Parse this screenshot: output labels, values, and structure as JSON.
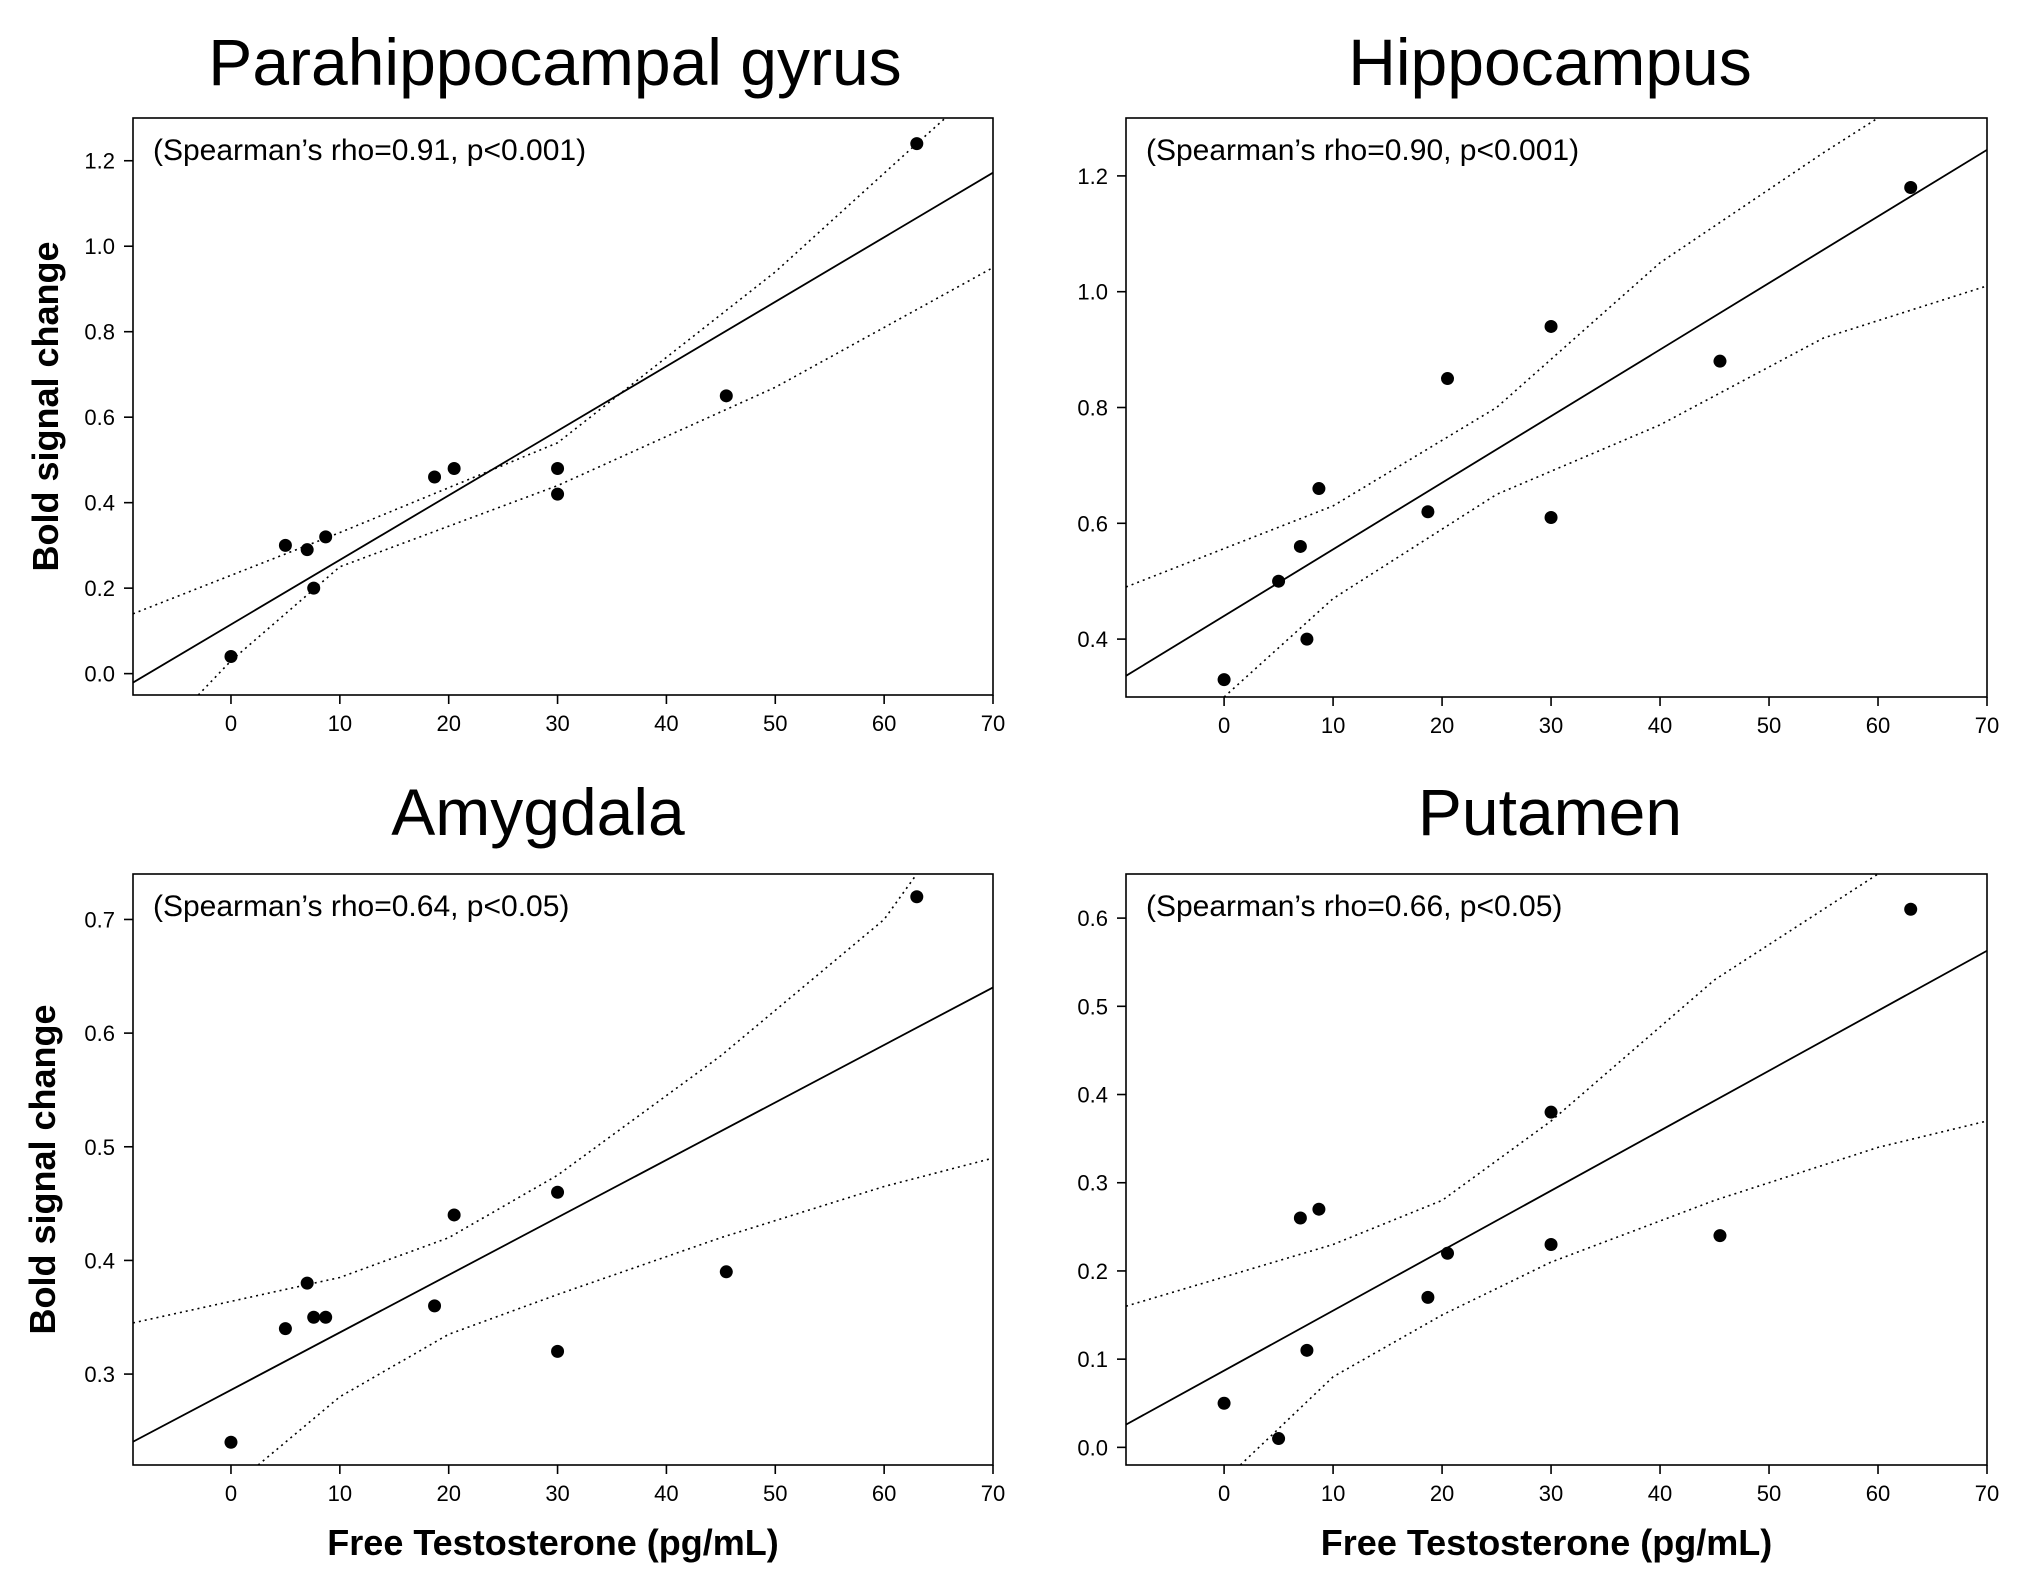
{
  "chart_data": [
    {
      "type": "scatter",
      "title": "Parahippocampal gyrus",
      "annotation": "(Spearman’s rho=0.91, p<0.001)",
      "xlabel": "",
      "ylabel": "Bold signal change",
      "xlim": [
        -9,
        70
      ],
      "ylim": [
        -0.05,
        1.3
      ],
      "xticks": [
        "0",
        "10",
        "20",
        "30",
        "40",
        "50",
        "60",
        "70"
      ],
      "yticks": [
        "0.0",
        "0.2",
        "0.4",
        "0.6",
        "0.8",
        "1.0",
        "1.2"
      ],
      "x": [
        0,
        5,
        7,
        7.6,
        8.7,
        18.7,
        20.5,
        30,
        30,
        45.5,
        63
      ],
      "y": [
        0.04,
        0.3,
        0.29,
        0.2,
        0.32,
        0.46,
        0.48,
        0.48,
        0.42,
        0.65,
        1.24
      ],
      "fit": {
        "intercept": 0.115,
        "slope": 0.0151
      },
      "ci_upper": {
        "x": [
          -9,
          10,
          30,
          50,
          63,
          70
        ],
        "y": [
          0.14,
          0.33,
          0.54,
          0.94,
          1.24,
          1.4
        ]
      },
      "ci_lower": {
        "x": [
          -3,
          0,
          10,
          30,
          50,
          70
        ],
        "y": [
          -0.05,
          0.03,
          0.25,
          0.44,
          0.67,
          0.95
        ]
      }
    },
    {
      "type": "scatter",
      "title": "Hippocampus",
      "annotation": "(Spearman’s rho=0.90, p<0.001)",
      "xlabel": "",
      "ylabel": "",
      "xlim": [
        -9,
        70
      ],
      "ylim": [
        0.3,
        1.3
      ],
      "xticks": [
        "0",
        "10",
        "20",
        "30",
        "40",
        "50",
        "60",
        "70"
      ],
      "yticks": [
        "0.4",
        "0.6",
        "0.8",
        "1.0",
        "1.2"
      ],
      "x": [
        0,
        5,
        7,
        7.6,
        8.7,
        18.7,
        20.5,
        30,
        30,
        45.5,
        63
      ],
      "y": [
        0.33,
        0.5,
        0.56,
        0.4,
        0.66,
        0.62,
        0.85,
        0.94,
        0.61,
        0.88,
        1.18
      ],
      "fit": {
        "intercept": 0.44,
        "slope": 0.0115
      },
      "ci_upper": {
        "x": [
          -9,
          10,
          25,
          40,
          55,
          60
        ],
        "y": [
          0.49,
          0.63,
          0.8,
          1.05,
          1.24,
          1.3
        ]
      },
      "ci_lower": {
        "x": [
          0,
          10,
          25,
          40,
          55,
          70
        ],
        "y": [
          0.3,
          0.47,
          0.65,
          0.77,
          0.92,
          1.01
        ]
      }
    },
    {
      "type": "scatter",
      "title": "Amygdala",
      "annotation": "(Spearman’s rho=0.64, p<0.05)",
      "xlabel": "Free Testosterone (pg/mL)",
      "ylabel": "Bold signal change",
      "xlim": [
        -9,
        70
      ],
      "ylim": [
        0.22,
        0.74
      ],
      "xticks": [
        "0",
        "10",
        "20",
        "30",
        "40",
        "50",
        "60",
        "70"
      ],
      "yticks": [
        "0.3",
        "0.4",
        "0.5",
        "0.6",
        "0.7"
      ],
      "x": [
        0,
        5,
        7,
        7.6,
        8.7,
        18.7,
        20.5,
        30,
        30,
        45.5,
        63
      ],
      "y": [
        0.24,
        0.34,
        0.38,
        0.35,
        0.35,
        0.36,
        0.44,
        0.46,
        0.32,
        0.39,
        0.72
      ],
      "fit": {
        "intercept": 0.286,
        "slope": 0.00506
      },
      "ci_upper": {
        "x": [
          -9,
          10,
          20,
          30,
          45,
          60,
          63
        ],
        "y": [
          0.345,
          0.385,
          0.42,
          0.475,
          0.58,
          0.7,
          0.74
        ]
      },
      "ci_lower": {
        "x": [
          2.5,
          10,
          20,
          30,
          45,
          60,
          70
        ],
        "y": [
          0.22,
          0.28,
          0.335,
          0.37,
          0.42,
          0.465,
          0.49
        ]
      }
    },
    {
      "type": "scatter",
      "title": "Putamen",
      "annotation": "(Spearman’s rho=0.66, p<0.05)",
      "xlabel": "Free Testosterone (pg/mL)",
      "ylabel": "",
      "xlim": [
        -9,
        70
      ],
      "ylim": [
        -0.02,
        0.65
      ],
      "xticks": [
        "0",
        "10",
        "20",
        "30",
        "40",
        "50",
        "60",
        "70"
      ],
      "yticks": [
        "0.0",
        "0.1",
        "0.2",
        "0.3",
        "0.4",
        "0.5",
        "0.6"
      ],
      "x": [
        0,
        5,
        7,
        7.6,
        8.7,
        18.7,
        20.5,
        30,
        30,
        45.5,
        63
      ],
      "y": [
        0.05,
        0.01,
        0.26,
        0.11,
        0.27,
        0.17,
        0.22,
        0.38,
        0.23,
        0.24,
        0.61
      ],
      "fit": {
        "intercept": 0.087,
        "slope": 0.0068
      },
      "ci_upper": {
        "x": [
          -9,
          10,
          20,
          30,
          45,
          60
        ],
        "y": [
          0.16,
          0.23,
          0.28,
          0.37,
          0.53,
          0.65
        ]
      },
      "ci_lower": {
        "x": [
          1.5,
          10,
          20,
          30,
          45,
          60,
          70
        ],
        "y": [
          -0.02,
          0.08,
          0.15,
          0.21,
          0.28,
          0.34,
          0.37
        ]
      }
    }
  ]
}
